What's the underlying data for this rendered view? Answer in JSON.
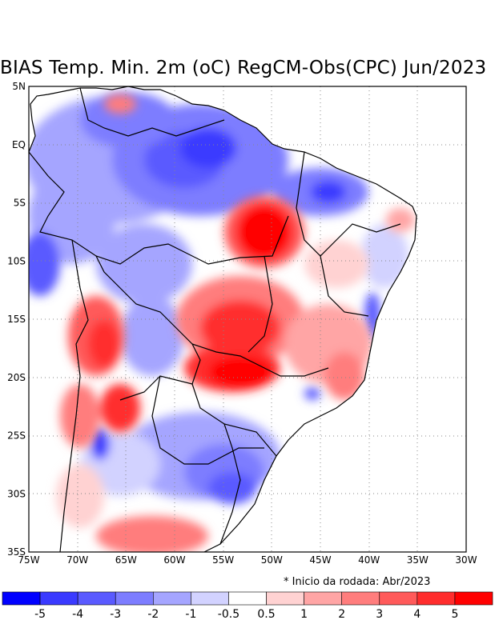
{
  "title": "BIAS Temp. Min. 2m (oC) RegCM-Obs(CPC) Jun/2023",
  "note": "* Inicio da rodada: Abr/2023",
  "map": {
    "region": "South America / Brazil",
    "lon_range": [
      -75,
      -30
    ],
    "lat_range": [
      -35,
      5
    ],
    "lon_ticks": [
      {
        "lon": -75,
        "label": "75W"
      },
      {
        "lon": -70,
        "label": "70W"
      },
      {
        "lon": -65,
        "label": "65W"
      },
      {
        "lon": -60,
        "label": "60W"
      },
      {
        "lon": -55,
        "label": "55W"
      },
      {
        "lon": -50,
        "label": "50W"
      },
      {
        "lon": -45,
        "label": "45W"
      },
      {
        "lon": -40,
        "label": "40W"
      },
      {
        "lon": -35,
        "label": "35W"
      },
      {
        "lon": -30,
        "label": "30W"
      }
    ],
    "lat_ticks": [
      {
        "lat": 5,
        "label": "5N"
      },
      {
        "lat": 0,
        "label": "EQ"
      },
      {
        "lat": -5,
        "label": "5S"
      },
      {
        "lat": -10,
        "label": "10S"
      },
      {
        "lat": -15,
        "label": "15S"
      },
      {
        "lat": -20,
        "label": "20S"
      },
      {
        "lat": -25,
        "label": "25S"
      },
      {
        "lat": -30,
        "label": "30S"
      },
      {
        "lat": -35,
        "label": "35S"
      }
    ]
  },
  "legend": {
    "colors": [
      "#0000ff",
      "#3a3aff",
      "#5a5aff",
      "#7d7dff",
      "#a5a5ff",
      "#d2d2ff",
      "#ffffff",
      "#ffd2d2",
      "#ffa5a5",
      "#ff7d7d",
      "#ff5a5a",
      "#ff2d2d",
      "#ff0000"
    ],
    "labels": [
      "-5",
      "-4",
      "-3",
      "-2",
      "-1",
      "-0.5",
      "0.5",
      "1",
      "2",
      "3",
      "4",
      "5"
    ]
  }
}
